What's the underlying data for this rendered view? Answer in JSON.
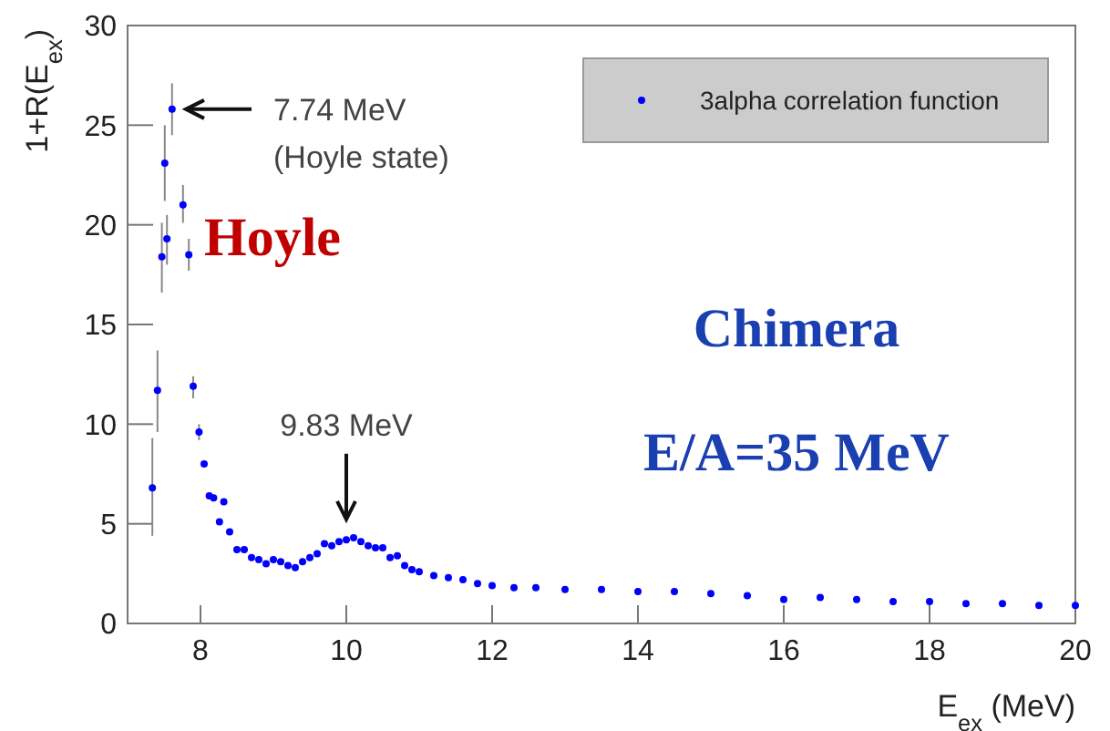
{
  "chart_data": {
    "type": "scatter",
    "xlabel": "E$_{ex}$ (MeV)",
    "ylabel": "1+R(E$_{ex}$)",
    "xlim": [
      7,
      20
    ],
    "xticks": [
      8,
      10,
      12,
      14,
      16,
      18,
      20
    ],
    "ylim": [
      0,
      30
    ],
    "yticks": [
      0,
      5,
      10,
      15,
      20,
      25,
      30
    ],
    "grid": false,
    "legend": "top right",
    "marker": "circle",
    "annotations": [
      {
        "text": "7.74 MeV\n(Hoyle state)",
        "x": 7.7,
        "y": 25.8
      },
      {
        "text": "9.83 MeV",
        "x": 10,
        "y": 4.4
      },
      "Hoyle",
      "Chimera",
      "E/A=35 MeV"
    ],
    "series": [
      {
        "name": "3alpha correlation function",
        "color": "#0000ff",
        "x": [
          7.34,
          7.41,
          7.47,
          7.51,
          7.54,
          7.61,
          7.76,
          7.84,
          7.9,
          7.98,
          8.05,
          8.12,
          8.18,
          8.26,
          8.32,
          8.4,
          8.5,
          8.6,
          8.7,
          8.8,
          8.9,
          9.0,
          9.1,
          9.2,
          9.3,
          9.4,
          9.5,
          9.6,
          9.7,
          9.8,
          9.9,
          10.0,
          10.1,
          10.2,
          10.3,
          10.4,
          10.5,
          10.6,
          10.7,
          10.8,
          10.9,
          11.0,
          11.2,
          11.4,
          11.6,
          11.8,
          12.0,
          12.3,
          12.6,
          13.0,
          13.5,
          14.0,
          14.5,
          15.0,
          15.5,
          16.0,
          16.5,
          17.0,
          17.5,
          18.0,
          18.5,
          19.0,
          19.5,
          20.0
        ],
        "values": [
          6.8,
          11.7,
          18.4,
          23.1,
          19.3,
          25.8,
          21.0,
          18.5,
          11.9,
          9.6,
          8.0,
          6.4,
          6.3,
          5.1,
          6.1,
          4.6,
          3.7,
          3.7,
          3.3,
          3.2,
          3.0,
          3.2,
          3.1,
          2.9,
          2.8,
          3.1,
          3.3,
          3.5,
          4.0,
          3.9,
          4.1,
          4.2,
          4.3,
          4.1,
          3.9,
          3.8,
          3.8,
          3.3,
          3.4,
          2.9,
          2.7,
          2.6,
          2.4,
          2.3,
          2.2,
          2.0,
          1.9,
          1.8,
          1.8,
          1.7,
          1.7,
          1.6,
          1.6,
          1.5,
          1.4,
          1.2,
          1.3,
          1.2,
          1.1,
          1.1,
          1.0,
          1.0,
          0.9,
          0.9
        ],
        "errors": [
          [
            4.4,
            9.3
          ],
          [
            9.6,
            13.7
          ],
          [
            16.6,
            20.1
          ],
          [
            21.2,
            25.0
          ],
          [
            18.0,
            20.5
          ],
          [
            24.5,
            27.1
          ],
          [
            20.1,
            22.0
          ],
          [
            17.7,
            19.3
          ],
          [
            11.3,
            12.4
          ],
          [
            9.2,
            10.0
          ],
          null,
          null,
          null,
          null,
          null,
          null,
          null,
          null,
          null,
          null,
          null,
          null,
          null,
          null,
          null,
          null,
          null,
          null,
          null,
          null,
          null,
          null,
          null,
          null,
          null,
          null,
          null,
          null,
          null,
          null,
          null,
          null,
          null,
          null,
          null,
          null,
          null,
          null,
          null,
          null,
          null,
          null,
          null,
          null,
          null,
          null,
          null,
          null,
          null,
          null,
          null,
          null,
          null,
          null
        ]
      }
    ]
  }
}
